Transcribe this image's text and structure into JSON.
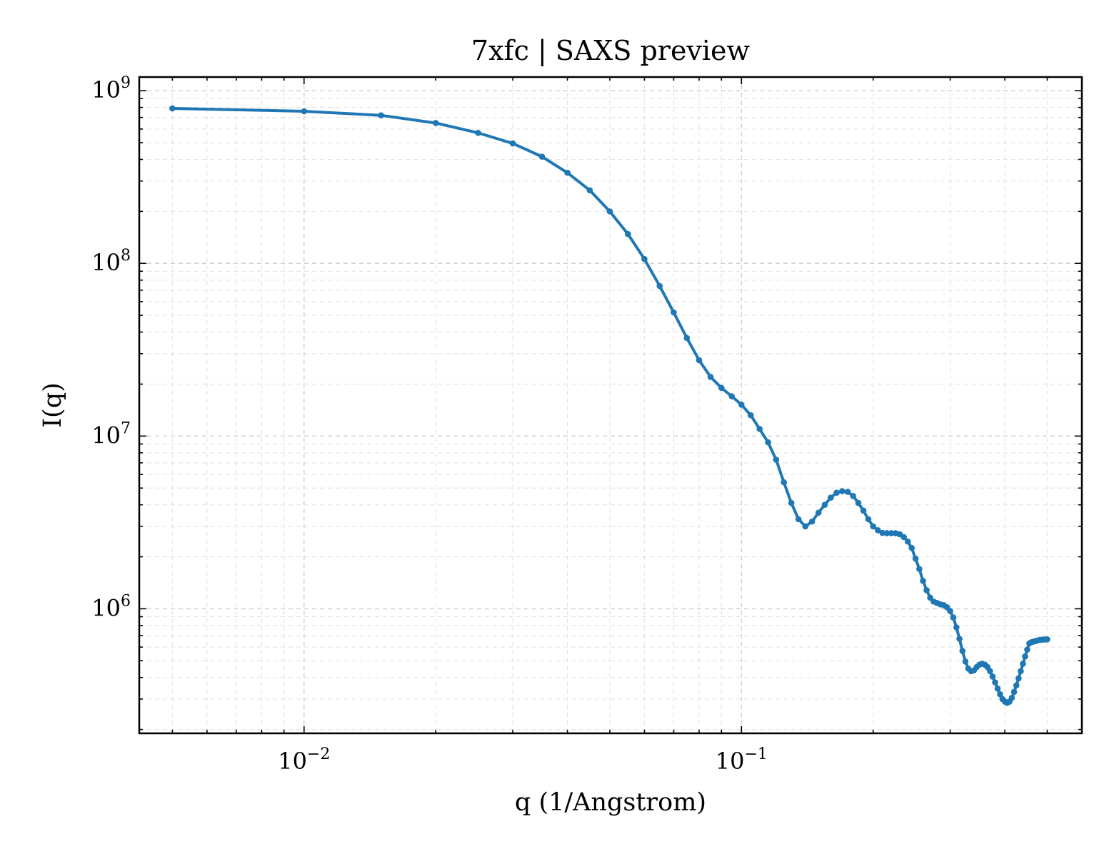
{
  "chart_data": {
    "type": "line",
    "title": "7xfc | SAXS preview",
    "xlabel": "q (1/Angstrom)",
    "ylabel": "I(q)",
    "xscale": "log",
    "yscale": "log",
    "xlim": [
      0.0042,
      0.6
    ],
    "ylim": [
      190000.0,
      1200000000.0
    ],
    "grid": true,
    "line_color": "#1f77b4",
    "markers": true,
    "xticks": [
      {
        "value": 0.01,
        "base": "10",
        "exp": "−2"
      },
      {
        "value": 0.1,
        "base": "10",
        "exp": "−1"
      }
    ],
    "yticks": [
      {
        "value": 1000000.0,
        "base": "10",
        "exp": "6"
      },
      {
        "value": 10000000.0,
        "base": "10",
        "exp": "7"
      },
      {
        "value": 100000000.0,
        "base": "10",
        "exp": "8"
      },
      {
        "value": 1000000000.0,
        "base": "10",
        "exp": "9"
      }
    ],
    "series": [
      {
        "x": [
          0.005,
          0.01,
          0.015,
          0.02,
          0.025,
          0.03,
          0.035,
          0.04,
          0.045,
          0.05,
          0.055,
          0.06,
          0.065,
          0.07,
          0.075,
          0.08,
          0.085,
          0.09,
          0.095,
          0.1,
          0.105,
          0.11,
          0.115,
          0.12,
          0.125,
          0.13,
          0.135,
          0.14,
          0.145,
          0.15,
          0.155,
          0.16,
          0.165,
          0.17,
          0.175,
          0.18,
          0.185,
          0.19,
          0.195,
          0.2,
          0.205,
          0.21,
          0.215,
          0.22,
          0.225,
          0.23,
          0.235,
          0.24,
          0.245,
          0.25,
          0.255,
          0.26,
          0.265,
          0.27,
          0.275,
          0.28,
          0.285,
          0.29,
          0.295,
          0.3,
          0.305,
          0.31,
          0.315,
          0.32,
          0.325,
          0.33,
          0.335,
          0.34,
          0.345,
          0.35,
          0.355,
          0.36,
          0.365,
          0.37,
          0.375,
          0.38,
          0.385,
          0.39,
          0.395,
          0.4,
          0.405,
          0.41,
          0.415,
          0.42,
          0.425,
          0.43,
          0.435,
          0.44,
          0.445,
          0.45,
          0.455,
          0.46,
          0.465,
          0.47,
          0.475,
          0.48,
          0.485,
          0.49,
          0.495,
          0.5
        ],
        "y": [
          790000000.0,
          760000000.0,
          720000000.0,
          650000000.0,
          570000000.0,
          495000000.0,
          415000000.0,
          335000000.0,
          265000000.0,
          200000000.0,
          148000000.0,
          106000000.0,
          74000000.0,
          52000000.0,
          37000000.0,
          27500000.0,
          22000000.0,
          19000000.0,
          17000000.0,
          15200000.0,
          13200000.0,
          11000000.0,
          9200000.0,
          7300000.0,
          5400000.0,
          4100000.0,
          3300000.0,
          3000000.0,
          3200000.0,
          3600000.0,
          4000000.0,
          4400000.0,
          4700000.0,
          4800000.0,
          4750000.0,
          4500000.0,
          4100000.0,
          3700000.0,
          3300000.0,
          3000000.0,
          2850000.0,
          2750000.0,
          2740000.0,
          2740000.0,
          2740000.0,
          2700000.0,
          2600000.0,
          2450000.0,
          2250000.0,
          1950000.0,
          1700000.0,
          1450000.0,
          1280000.0,
          1160000.0,
          1100000.0,
          1080000.0,
          1060000.0,
          1050000.0,
          1020000.0,
          970000.0,
          890000.0,
          780000.0,
          670000.0,
          570000.0,
          495000.0,
          450000.0,
          435000.0,
          440000.0,
          460000.0,
          475000.0,
          480000.0,
          475000.0,
          460000.0,
          435000.0,
          405000.0,
          375000.0,
          345000.0,
          320000.0,
          300000.0,
          290000.0,
          285000.0,
          290000.0,
          305000.0,
          330000.0,
          360000.0,
          395000.0,
          435000.0,
          480000.0,
          530000.0,
          580000.0,
          630000.0,
          640000.0,
          645000.0,
          650000.0,
          655000.0,
          660000.0,
          662000.0,
          663000.0,
          664000.0,
          665000.0
        ]
      }
    ]
  }
}
